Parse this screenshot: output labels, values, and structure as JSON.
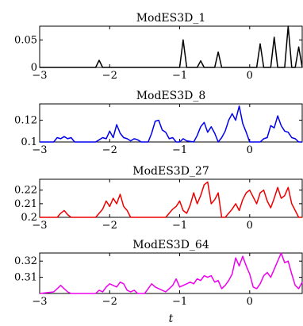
{
  "chart_data": [
    {
      "type": "line",
      "title": "ModES3D_1",
      "color": "#000000",
      "xlim": [
        -3,
        0.75
      ],
      "ylim": [
        0,
        0.075
      ],
      "xticks": [
        -3,
        -2,
        -1,
        0
      ],
      "xticklabels": [
        "−3",
        "−2",
        "−1",
        "0"
      ],
      "yticks": [
        0,
        0.05
      ],
      "yticklabels": [
        "0",
        "0.05"
      ],
      "xlabel": "",
      "x": [
        -3.0,
        -2.2,
        -2.15,
        -2.1,
        -1.0,
        -0.95,
        -0.9,
        -0.75,
        -0.7,
        -0.65,
        -0.5,
        -0.45,
        -0.4,
        0.1,
        0.15,
        0.2,
        0.3,
        0.35,
        0.4,
        0.5,
        0.55,
        0.6,
        0.65,
        0.7,
        0.75
      ],
      "y": [
        0.0,
        0.0,
        0.013,
        0.0,
        0.0,
        0.05,
        0.0,
        0.0,
        0.012,
        0.0,
        0.0,
        0.028,
        0.0,
        0.0,
        0.043,
        0.0,
        0.0,
        0.055,
        0.0,
        0.0,
        0.075,
        0.0,
        0.0,
        0.037,
        0.0
      ]
    },
    {
      "type": "line",
      "title": "ModES3D_8",
      "color": "#0000ee",
      "xlim": [
        -3,
        0.75
      ],
      "ylim": [
        0.1,
        0.135
      ],
      "xticks": [
        -3,
        -2,
        -1,
        0
      ],
      "xticklabels": [
        "−3",
        "−2",
        "−1",
        "0"
      ],
      "yticks": [
        0.1,
        0.12
      ],
      "yticklabels": [
        "0.1",
        "0.12"
      ],
      "xlabel": "",
      "x": [
        -3.0,
        -2.8,
        -2.75,
        -2.7,
        -2.65,
        -2.6,
        -2.55,
        -2.5,
        -2.2,
        -2.15,
        -2.1,
        -2.05,
        -2.0,
        -1.95,
        -1.9,
        -1.85,
        -1.8,
        -1.75,
        -1.7,
        -1.65,
        -1.6,
        -1.55,
        -1.45,
        -1.4,
        -1.35,
        -1.3,
        -1.25,
        -1.2,
        -1.15,
        -1.1,
        -1.05,
        -1.0,
        -0.95,
        -0.9,
        -0.8,
        -0.75,
        -0.7,
        -0.65,
        -0.6,
        -0.55,
        -0.5,
        -0.45,
        -0.4,
        -0.35,
        -0.3,
        -0.25,
        -0.2,
        -0.15,
        -0.1,
        -0.05,
        0.0,
        0.05,
        0.15,
        0.2,
        0.25,
        0.3,
        0.35,
        0.4,
        0.45,
        0.5,
        0.55,
        0.6,
        0.65,
        0.7,
        0.75
      ],
      "y": [
        0.1,
        0.1,
        0.104,
        0.103,
        0.105,
        0.103,
        0.104,
        0.1,
        0.1,
        0.102,
        0.104,
        0.103,
        0.11,
        0.104,
        0.116,
        0.108,
        0.104,
        0.103,
        0.101,
        0.103,
        0.102,
        0.1,
        0.1,
        0.108,
        0.119,
        0.12,
        0.111,
        0.109,
        0.103,
        0.104,
        0.1,
        0.1,
        0.103,
        0.101,
        0.1,
        0.106,
        0.114,
        0.118,
        0.109,
        0.114,
        0.108,
        0.1,
        0.104,
        0.11,
        0.12,
        0.126,
        0.12,
        0.133,
        0.117,
        0.109,
        0.1,
        0.1,
        0.1,
        0.103,
        0.104,
        0.115,
        0.113,
        0.124,
        0.115,
        0.11,
        0.109,
        0.104,
        0.103,
        0.1,
        0.1
      ]
    },
    {
      "type": "line",
      "title": "ModES3D_27",
      "color": "#ee0000",
      "xlim": [
        -3,
        0.75
      ],
      "ylim": [
        0.2,
        0.228
      ],
      "xticks": [
        -3,
        -2,
        -1,
        0
      ],
      "xticklabels": [
        "−3",
        "−2",
        "−1",
        "0"
      ],
      "yticks": [
        0.2,
        0.21,
        0.22
      ],
      "yticklabels": [
        "0.2",
        "0.21",
        "0.22"
      ],
      "xlabel": "",
      "x": [
        -3.0,
        -2.75,
        -2.7,
        -2.65,
        -2.6,
        -2.55,
        -2.2,
        -2.15,
        -2.1,
        -2.05,
        -2.0,
        -1.95,
        -1.9,
        -1.85,
        -1.8,
        -1.75,
        -1.7,
        -1.2,
        -1.15,
        -1.1,
        -1.05,
        -1.0,
        -0.95,
        -0.9,
        -0.85,
        -0.8,
        -0.75,
        -0.7,
        -0.65,
        -0.6,
        -0.55,
        -0.5,
        -0.45,
        -0.4,
        -0.35,
        -0.3,
        -0.25,
        -0.2,
        -0.15,
        -0.1,
        -0.05,
        0.0,
        0.05,
        0.1,
        0.15,
        0.2,
        0.25,
        0.3,
        0.35,
        0.4,
        0.45,
        0.5,
        0.55,
        0.6,
        0.65,
        0.7,
        0.75
      ],
      "y": [
        0.2,
        0.2,
        0.203,
        0.205,
        0.202,
        0.2,
        0.2,
        0.203,
        0.206,
        0.212,
        0.208,
        0.214,
        0.21,
        0.217,
        0.208,
        0.205,
        0.2,
        0.2,
        0.203,
        0.206,
        0.208,
        0.212,
        0.205,
        0.203,
        0.209,
        0.218,
        0.21,
        0.216,
        0.224,
        0.226,
        0.21,
        0.213,
        0.218,
        0.2,
        0.2,
        0.203,
        0.206,
        0.21,
        0.205,
        0.213,
        0.218,
        0.22,
        0.215,
        0.21,
        0.218,
        0.22,
        0.212,
        0.207,
        0.214,
        0.222,
        0.214,
        0.216,
        0.222,
        0.21,
        0.205,
        0.2,
        0.2
      ]
    },
    {
      "type": "line",
      "title": "ModES3D_64",
      "color": "#ee00ee",
      "xlim": [
        -3,
        0.75
      ],
      "ylim": [
        0.3,
        0.325
      ],
      "xticks": [
        -3,
        -2,
        -1,
        0
      ],
      "xticklabels": [
        "−3",
        "−2",
        "−1",
        "0"
      ],
      "yticks": [
        0.31,
        0.32
      ],
      "yticklabels": [
        "0.31",
        "0.32"
      ],
      "xlabel": "t",
      "x": [
        -3.0,
        -2.8,
        -2.75,
        -2.7,
        -2.65,
        -2.6,
        -2.55,
        -2.5,
        -2.2,
        -2.15,
        -2.1,
        -2.05,
        -2.0,
        -1.95,
        -1.9,
        -1.85,
        -1.8,
        -1.75,
        -1.7,
        -1.65,
        -1.6,
        -1.5,
        -1.45,
        -1.4,
        -1.35,
        -1.3,
        -1.2,
        -1.15,
        -1.1,
        -1.05,
        -1.0,
        -0.9,
        -0.85,
        -0.8,
        -0.75,
        -0.7,
        -0.65,
        -0.6,
        -0.55,
        -0.5,
        -0.45,
        -0.4,
        -0.35,
        -0.3,
        -0.25,
        -0.2,
        -0.15,
        -0.1,
        -0.05,
        0.0,
        0.05,
        0.1,
        0.15,
        0.2,
        0.25,
        0.3,
        0.35,
        0.4,
        0.45,
        0.5,
        0.55,
        0.6,
        0.65,
        0.7,
        0.75
      ],
      "y": [
        0.3,
        0.301,
        0.303,
        0.305,
        0.303,
        0.301,
        0.3,
        0.3,
        0.3,
        0.302,
        0.301,
        0.304,
        0.306,
        0.305,
        0.304,
        0.307,
        0.306,
        0.302,
        0.301,
        0.302,
        0.3,
        0.3,
        0.303,
        0.306,
        0.304,
        0.303,
        0.301,
        0.303,
        0.305,
        0.309,
        0.304,
        0.306,
        0.307,
        0.306,
        0.309,
        0.308,
        0.311,
        0.31,
        0.311,
        0.307,
        0.308,
        0.303,
        0.305,
        0.308,
        0.312,
        0.322,
        0.317,
        0.323,
        0.317,
        0.312,
        0.304,
        0.303,
        0.306,
        0.311,
        0.313,
        0.31,
        0.315,
        0.32,
        0.325,
        0.319,
        0.32,
        0.312,
        0.305,
        0.303,
        0.307
      ]
    }
  ]
}
